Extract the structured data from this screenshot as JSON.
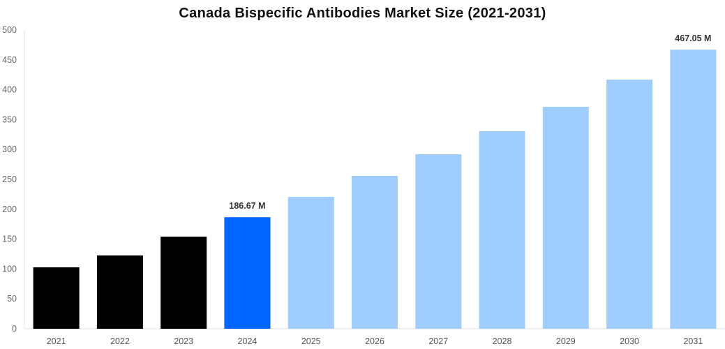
{
  "chart_data": {
    "type": "bar",
    "title": "Canada Bispecific Antibodies Market Size (2021-2031)",
    "xlabel": "",
    "ylabel": "",
    "ylim": [
      0,
      500
    ],
    "yticks": [
      "0",
      "50",
      "100",
      "150",
      "200",
      "250",
      "300",
      "350",
      "400",
      "450",
      "500"
    ],
    "categories": [
      "2021",
      "2022",
      "2023",
      "2024",
      "2025",
      "2026",
      "2027",
      "2028",
      "2029",
      "2030",
      "2031"
    ],
    "values": [
      102.8,
      122.7,
      154.2,
      186.67,
      220.8,
      255.8,
      292.1,
      330.6,
      371.5,
      417.0,
      467.05
    ],
    "colors": [
      "#000000",
      "#000000",
      "#000000",
      "#0066ff",
      "#a0cdff",
      "#a0cdff",
      "#a0cdff",
      "#a0cdff",
      "#a0cdff",
      "#a0cdff",
      "#a0cdff"
    ],
    "data_labels": {
      "3": "186.67 M",
      "10": "467.05 M"
    },
    "grid": false,
    "legend": "none"
  }
}
